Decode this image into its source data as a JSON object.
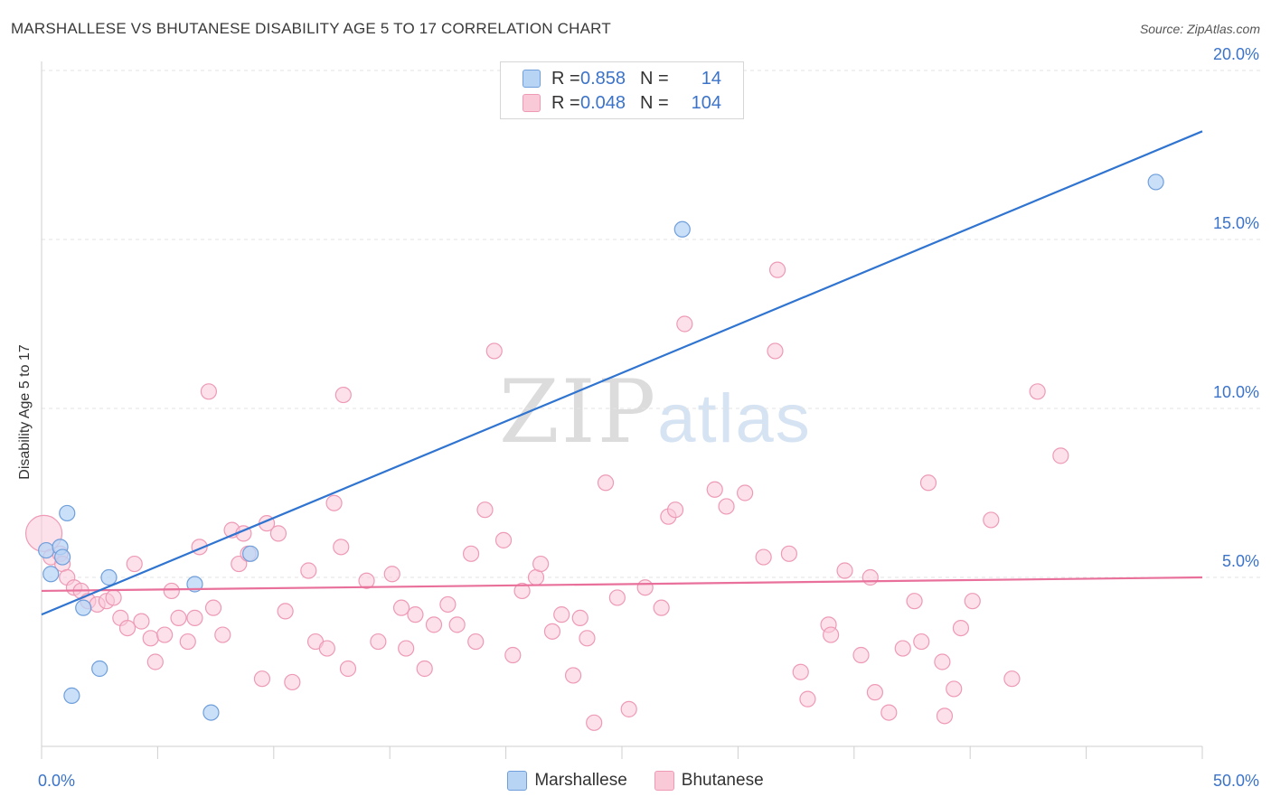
{
  "chart_data": {
    "type": "scatter",
    "title": "MARSHALLESE VS BHUTANESE DISABILITY AGE 5 TO 17 CORRELATION CHART",
    "source": "Source: ZipAtlas.com",
    "ylabel": "Disability Age 5 to 17",
    "xlabel": "",
    "xlim": [
      0,
      50
    ],
    "ylim": [
      0,
      20
    ],
    "x_tick_labels": [
      "0.0%",
      "50.0%"
    ],
    "y_ticks": [
      {
        "value": 5,
        "label": "5.0%"
      },
      {
        "value": 10,
        "label": "10.0%"
      },
      {
        "value": 15,
        "label": "15.0%"
      },
      {
        "value": 20,
        "label": "20.0%"
      }
    ],
    "watermark": {
      "zip": "ZIP",
      "atlas": "atlas"
    },
    "colors": {
      "marshallese_fill": "#b8d4f5",
      "marshallese_stroke": "#6f9fdb",
      "marshallese_line": "#2f74d0",
      "bhutanese_fill": "#f9c9d8",
      "bhutanese_stroke": "#ee9ab5",
      "bhutanese_line": "#e8709a",
      "value_text": "#3b73c9",
      "grid": "#e3e3e3"
    },
    "legend_stats": [
      {
        "series": "Marshallese",
        "r_label": "R =",
        "r": "0.858",
        "n_label": "N =",
        "n": "14"
      },
      {
        "series": "Bhutanese",
        "r_label": "R =",
        "r": "0.048",
        "n_label": "N =",
        "n": "104"
      }
    ],
    "series": [
      {
        "name": "Marshallese",
        "trend": {
          "x": [
            0,
            50
          ],
          "y": [
            3.9,
            18.2
          ]
        },
        "points": [
          [
            0.2,
            5.8
          ],
          [
            0.4,
            5.1
          ],
          [
            0.8,
            5.9
          ],
          [
            0.9,
            5.6
          ],
          [
            1.1,
            6.9
          ],
          [
            1.3,
            1.5
          ],
          [
            1.8,
            4.1
          ],
          [
            2.5,
            2.3
          ],
          [
            2.9,
            5.0
          ],
          [
            6.6,
            4.8
          ],
          [
            7.3,
            1.0
          ],
          [
            9.0,
            5.7
          ],
          [
            27.6,
            15.3
          ],
          [
            48.0,
            16.7
          ]
        ]
      },
      {
        "name": "Bhutanese",
        "trend": {
          "x": [
            0,
            50
          ],
          "y": [
            4.6,
            5.0
          ]
        },
        "points": [
          [
            0.1,
            6.3
          ],
          [
            0.4,
            5.6
          ],
          [
            0.8,
            5.7
          ],
          [
            0.9,
            5.4
          ],
          [
            1.1,
            5.0
          ],
          [
            1.4,
            4.7
          ],
          [
            1.7,
            4.6
          ],
          [
            2.0,
            4.3
          ],
          [
            2.4,
            4.2
          ],
          [
            2.8,
            4.3
          ],
          [
            3.1,
            4.4
          ],
          [
            3.4,
            3.8
          ],
          [
            3.7,
            3.5
          ],
          [
            4.0,
            5.4
          ],
          [
            4.3,
            3.7
          ],
          [
            4.7,
            3.2
          ],
          [
            4.9,
            2.5
          ],
          [
            5.3,
            3.3
          ],
          [
            5.6,
            4.6
          ],
          [
            5.9,
            3.8
          ],
          [
            6.3,
            3.1
          ],
          [
            6.6,
            3.8
          ],
          [
            6.8,
            5.9
          ],
          [
            7.2,
            10.5
          ],
          [
            7.4,
            4.1
          ],
          [
            7.8,
            3.3
          ],
          [
            8.2,
            6.4
          ],
          [
            8.5,
            5.4
          ],
          [
            8.7,
            6.3
          ],
          [
            8.9,
            5.7
          ],
          [
            9.5,
            2.0
          ],
          [
            9.7,
            6.6
          ],
          [
            10.2,
            6.3
          ],
          [
            10.5,
            4.0
          ],
          [
            10.8,
            1.9
          ],
          [
            11.5,
            5.2
          ],
          [
            11.8,
            3.1
          ],
          [
            12.3,
            2.9
          ],
          [
            12.6,
            7.2
          ],
          [
            12.9,
            5.9
          ],
          [
            13.2,
            2.3
          ],
          [
            13.0,
            10.4
          ],
          [
            14.0,
            4.9
          ],
          [
            14.5,
            3.1
          ],
          [
            15.1,
            5.1
          ],
          [
            15.5,
            4.1
          ],
          [
            15.7,
            2.9
          ],
          [
            16.1,
            3.9
          ],
          [
            16.5,
            2.3
          ],
          [
            16.9,
            3.6
          ],
          [
            17.5,
            4.2
          ],
          [
            17.9,
            3.6
          ],
          [
            18.5,
            5.7
          ],
          [
            18.7,
            3.1
          ],
          [
            19.1,
            7.0
          ],
          [
            19.5,
            11.7
          ],
          [
            19.9,
            6.1
          ],
          [
            20.3,
            2.7
          ],
          [
            20.7,
            4.6
          ],
          [
            21.3,
            5.0
          ],
          [
            21.5,
            5.4
          ],
          [
            22.0,
            3.4
          ],
          [
            22.4,
            3.9
          ],
          [
            22.9,
            2.1
          ],
          [
            23.2,
            3.8
          ],
          [
            23.5,
            3.2
          ],
          [
            23.8,
            0.7
          ],
          [
            24.3,
            7.8
          ],
          [
            24.8,
            4.4
          ],
          [
            25.3,
            1.1
          ],
          [
            26.0,
            4.7
          ],
          [
            26.7,
            4.1
          ],
          [
            27.0,
            6.8
          ],
          [
            27.3,
            7.0
          ],
          [
            27.7,
            12.5
          ],
          [
            29.0,
            7.6
          ],
          [
            29.5,
            7.1
          ],
          [
            30.3,
            7.5
          ],
          [
            31.1,
            5.6
          ],
          [
            31.6,
            11.7
          ],
          [
            31.7,
            14.1
          ],
          [
            32.2,
            5.7
          ],
          [
            32.7,
            2.2
          ],
          [
            33.0,
            1.4
          ],
          [
            33.9,
            3.6
          ],
          [
            34.0,
            3.3
          ],
          [
            34.6,
            5.2
          ],
          [
            35.3,
            2.7
          ],
          [
            35.7,
            5.0
          ],
          [
            35.9,
            1.6
          ],
          [
            36.5,
            1.0
          ],
          [
            37.1,
            2.9
          ],
          [
            37.6,
            4.3
          ],
          [
            37.9,
            3.1
          ],
          [
            38.2,
            7.8
          ],
          [
            38.8,
            2.5
          ],
          [
            38.9,
            0.9
          ],
          [
            39.3,
            1.7
          ],
          [
            39.6,
            3.5
          ],
          [
            40.1,
            4.3
          ],
          [
            40.9,
            6.7
          ],
          [
            41.8,
            2.0
          ],
          [
            42.9,
            10.5
          ],
          [
            43.9,
            8.6
          ]
        ]
      }
    ]
  }
}
